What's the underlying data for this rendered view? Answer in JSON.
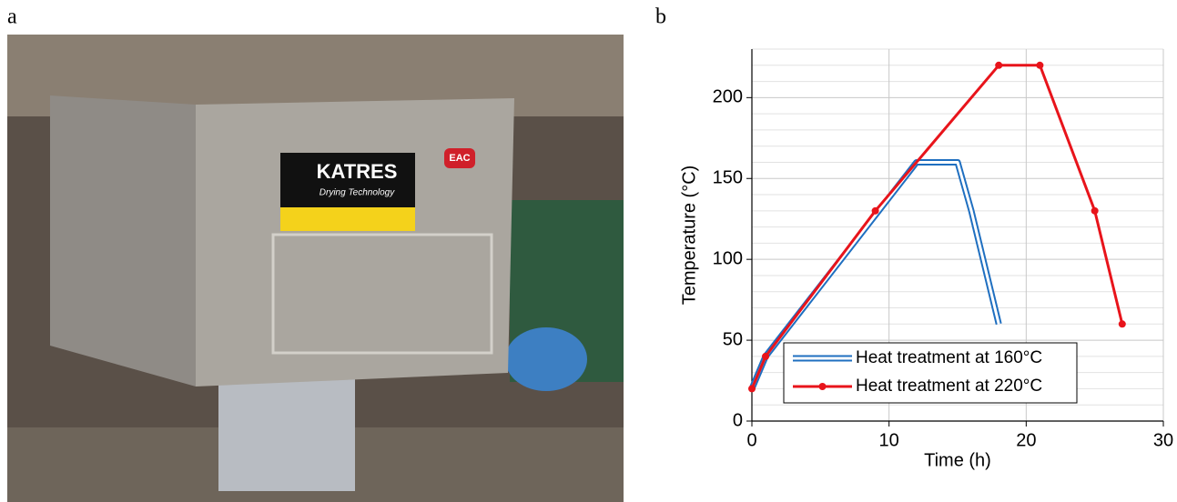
{
  "panel_labels": [
    "a",
    "b"
  ],
  "photo": {
    "brand": "KATRES",
    "tagline": "Drying Technology",
    "badge": "EAC"
  },
  "chart_data": {
    "type": "line",
    "x_label": "Time (h)",
    "y_label": "Temperature (°C)",
    "xlim": [
      0,
      30
    ],
    "xticks": [
      0,
      10,
      20,
      30
    ],
    "ylim": [
      0,
      230
    ],
    "yticks": [
      0,
      50,
      100,
      150,
      200
    ],
    "y_minor_ticks": [
      10,
      20,
      30,
      40,
      60,
      70,
      80,
      90,
      110,
      120,
      130,
      140,
      160,
      170,
      180,
      190,
      210,
      220,
      230
    ],
    "grid": true,
    "legend": "lower center",
    "series": [
      {
        "name": "Heat treatment at 160°C",
        "color": "#1f6fc0",
        "style": "double",
        "marker": false,
        "x": [
          0,
          1,
          12,
          15,
          16,
          18
        ],
        "values": [
          20,
          40,
          160,
          160,
          130,
          60
        ]
      },
      {
        "name": "Heat treatment at 220°C",
        "color": "#e8141b",
        "style": "solid",
        "marker": true,
        "x": [
          0,
          1,
          9,
          18,
          21,
          25,
          27
        ],
        "values": [
          20,
          40,
          130,
          220,
          220,
          130,
          60
        ]
      }
    ]
  }
}
